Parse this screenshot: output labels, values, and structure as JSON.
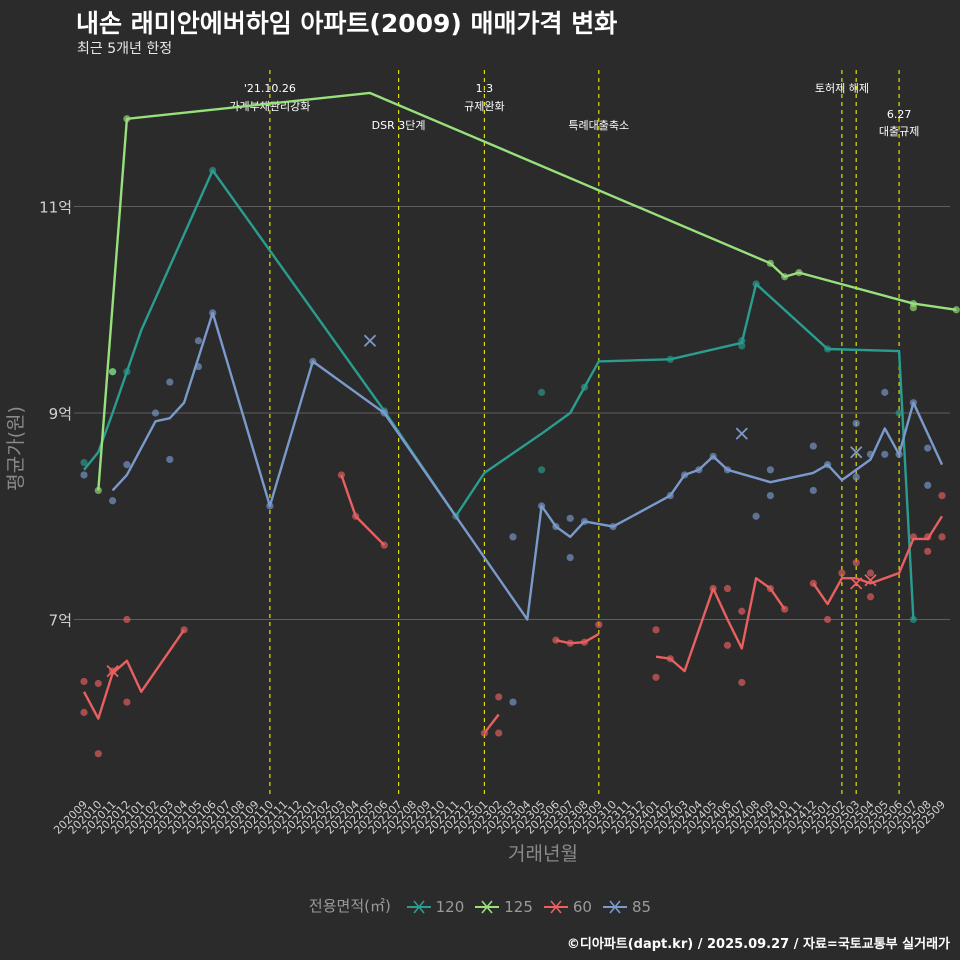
{
  "chart_data": {
    "type": "line",
    "title": "내손 래미안에버하임 아파트(2009) 매매가격 변화",
    "subtitle": "최근 5개년 한정",
    "xlabel": "거래년월",
    "ylabel": "평균가(원)",
    "caption": "©디아파트(dapt.kr) / 2025.09.27 / 자료=국토교통부 실거래가",
    "legend_title": "전용면적(㎡)",
    "ylim": [
      5.3,
      12.4
    ],
    "y_ticks": [
      {
        "value": 7,
        "label": "7억"
      },
      {
        "value": 9,
        "label": "9억"
      },
      {
        "value": 11,
        "label": "11억"
      }
    ],
    "categories": [
      "202009",
      "202010",
      "202011",
      "202012",
      "202101",
      "202102",
      "202103",
      "202104",
      "202105",
      "202106",
      "202107",
      "202108",
      "202109",
      "202110",
      "202111",
      "202112",
      "202201",
      "202202",
      "202203",
      "202204",
      "202205",
      "202206",
      "202207",
      "202208",
      "202209",
      "202210",
      "202211",
      "202212",
      "202301",
      "202302",
      "202303",
      "202304",
      "202305",
      "202306",
      "202307",
      "202308",
      "202309",
      "202310",
      "202311",
      "202312",
      "202401",
      "202402",
      "202403",
      "202404",
      "202405",
      "202406",
      "202407",
      "202408",
      "202409",
      "202410",
      "202411",
      "202412",
      "202501",
      "202502",
      "202503",
      "202504",
      "202505",
      "202506",
      "202507",
      "202508",
      "202509"
    ],
    "events": [
      {
        "x": 13,
        "label": [
          "'21.10.26",
          "가계부채관리강화"
        ],
        "row": 0
      },
      {
        "x": 22,
        "label": [
          "DSR 3단계"
        ],
        "row": 1
      },
      {
        "x": 28,
        "label": [
          "1.3",
          "규제완화"
        ],
        "row": 0
      },
      {
        "x": 36,
        "label": [
          "특례대출축소"
        ],
        "row": 1
      },
      {
        "x": 53,
        "label": [
          "토허제 해제"
        ],
        "row": 0
      },
      {
        "x": 54,
        "label": [],
        "row": 0
      },
      {
        "x": 57,
        "label": [
          "6.27",
          "대출규제"
        ],
        "row": 2
      }
    ],
    "series": [
      {
        "name": "120",
        "color": "#2a9d8f",
        "line": [
          [
            0,
            8.45
          ],
          [
            1,
            8.62
          ],
          [
            2,
            9.0
          ],
          [
            4,
            9.8
          ],
          [
            9,
            11.35
          ],
          [
            21,
            9.02
          ],
          [
            26,
            8.0
          ],
          [
            28,
            8.42
          ],
          [
            32,
            8.8
          ],
          [
            34,
            9.0
          ],
          [
            36,
            9.5
          ],
          [
            41,
            9.52
          ],
          [
            46,
            9.68
          ],
          [
            47,
            10.25
          ],
          [
            52,
            9.62
          ],
          [
            57,
            9.6
          ],
          [
            58,
            7.0
          ]
        ],
        "points": [
          [
            0,
            8.52
          ],
          [
            2,
            9.4
          ],
          [
            3,
            9.4
          ],
          [
            9,
            11.35
          ],
          [
            21,
            9.02
          ],
          [
            26,
            8.0
          ],
          [
            32,
            9.2
          ],
          [
            32,
            8.45
          ],
          [
            35,
            9.25
          ],
          [
            41,
            9.52
          ],
          [
            46,
            9.7
          ],
          [
            46,
            9.65
          ],
          [
            47,
            10.25
          ],
          [
            52,
            9.62
          ],
          [
            57,
            9.0
          ],
          [
            58,
            7.0
          ]
        ],
        "crosses": []
      },
      {
        "name": "125",
        "color": "#98e07c",
        "line": [
          [
            1,
            8.25
          ],
          [
            3,
            11.85
          ],
          [
            20,
            12.1
          ],
          [
            48,
            10.45
          ],
          [
            49,
            10.32
          ],
          [
            50,
            10.36
          ],
          [
            58,
            10.06
          ],
          [
            61,
            10.0
          ]
        ],
        "points": [
          [
            1,
            8.25
          ],
          [
            2,
            9.4
          ],
          [
            3,
            11.85
          ],
          [
            48,
            10.45
          ],
          [
            49,
            10.32
          ],
          [
            50,
            10.36
          ],
          [
            58,
            10.06
          ],
          [
            58,
            10.02
          ],
          [
            61,
            10.0
          ]
        ],
        "crosses": []
      },
      {
        "name": "60",
        "color": "#e86060",
        "line": [
          [
            0,
            6.3
          ],
          [
            1,
            6.04
          ],
          [
            2,
            6.48
          ],
          [
            3,
            6.6
          ],
          [
            4,
            6.3
          ],
          [
            7,
            6.9
          ]
        ],
        "line2": [
          [
            18,
            8.4
          ],
          [
            19,
            8.0
          ],
          [
            21,
            7.72
          ]
        ],
        "line3": [
          [
            28,
            5.9
          ],
          [
            29,
            6.08
          ]
        ],
        "line4": [
          [
            33,
            6.8
          ],
          [
            34,
            6.77
          ],
          [
            35,
            6.78
          ],
          [
            36,
            6.86
          ]
        ],
        "line5": [
          [
            40,
            6.64
          ],
          [
            41,
            6.62
          ],
          [
            42,
            6.5
          ],
          [
            44,
            7.3
          ],
          [
            45,
            7.0
          ],
          [
            46,
            6.72
          ],
          [
            47,
            7.4
          ],
          [
            48,
            7.3
          ],
          [
            49,
            7.1
          ]
        ],
        "line6": [
          [
            51,
            7.35
          ],
          [
            52,
            7.15
          ],
          [
            53,
            7.4
          ],
          [
            54,
            7.4
          ],
          [
            55,
            7.35
          ],
          [
            57,
            7.45
          ],
          [
            58,
            7.78
          ],
          [
            59,
            7.78
          ],
          [
            60,
            8.0
          ]
        ],
        "points": [
          [
            0,
            6.4
          ],
          [
            0,
            6.1
          ],
          [
            1,
            6.38
          ],
          [
            1,
            5.7
          ],
          [
            2,
            6.5
          ],
          [
            3,
            7.0
          ],
          [
            3,
            6.2
          ],
          [
            7,
            6.9
          ],
          [
            18,
            8.4
          ],
          [
            19,
            8.0
          ],
          [
            21,
            7.72
          ],
          [
            28,
            5.9
          ],
          [
            29,
            6.25
          ],
          [
            29,
            5.9
          ],
          [
            33,
            6.8
          ],
          [
            34,
            6.77
          ],
          [
            35,
            6.78
          ],
          [
            36,
            6.95
          ],
          [
            40,
            6.9
          ],
          [
            40,
            6.44
          ],
          [
            41,
            6.62
          ],
          [
            44,
            7.3
          ],
          [
            45,
            7.3
          ],
          [
            45,
            6.75
          ],
          [
            46,
            7.08
          ],
          [
            46,
            6.39
          ],
          [
            48,
            7.3
          ],
          [
            49,
            7.1
          ],
          [
            51,
            7.35
          ],
          [
            52,
            7.0
          ],
          [
            53,
            7.45
          ],
          [
            54,
            7.55
          ],
          [
            55,
            7.22
          ],
          [
            55,
            7.45
          ],
          [
            58,
            7.8
          ],
          [
            59,
            7.66
          ],
          [
            59,
            7.8
          ],
          [
            60,
            8.2
          ],
          [
            60,
            7.8
          ]
        ],
        "crosses": [
          [
            2,
            6.5
          ],
          [
            54,
            7.35
          ],
          [
            55,
            7.38
          ]
        ]
      },
      {
        "name": "85",
        "color": "#7b9acc",
        "line": [
          [
            2,
            8.25
          ],
          [
            3,
            8.4
          ],
          [
            5,
            8.92
          ],
          [
            6,
            8.95
          ],
          [
            7,
            9.1
          ],
          [
            9,
            9.97
          ],
          [
            13,
            8.1
          ],
          [
            16,
            9.5
          ],
          [
            21,
            9.0
          ],
          [
            31,
            7.0
          ],
          [
            32,
            8.1
          ],
          [
            33,
            7.9
          ],
          [
            34,
            7.8
          ],
          [
            35,
            7.95
          ],
          [
            37,
            7.9
          ],
          [
            41,
            8.2
          ],
          [
            42,
            8.4
          ],
          [
            43,
            8.45
          ],
          [
            44,
            8.58
          ],
          [
            45,
            8.45
          ],
          [
            48,
            8.33
          ],
          [
            51,
            8.42
          ],
          [
            52,
            8.5
          ],
          [
            53,
            8.35
          ],
          [
            55,
            8.55
          ],
          [
            56,
            8.85
          ],
          [
            57,
            8.6
          ],
          [
            58,
            9.1
          ],
          [
            60,
            8.5
          ]
        ],
        "points": [
          [
            0,
            8.4
          ],
          [
            2,
            8.15
          ],
          [
            3,
            8.5
          ],
          [
            5,
            9.0
          ],
          [
            6,
            9.3
          ],
          [
            6,
            8.55
          ],
          [
            8,
            9.7
          ],
          [
            8,
            9.45
          ],
          [
            9,
            9.97
          ],
          [
            13,
            8.1
          ],
          [
            16,
            9.5
          ],
          [
            21,
            9.0
          ],
          [
            30,
            7.8
          ],
          [
            30,
            6.2
          ],
          [
            32,
            8.1
          ],
          [
            33,
            7.9
          ],
          [
            34,
            7.98
          ],
          [
            34,
            7.6
          ],
          [
            35,
            7.95
          ],
          [
            37,
            7.9
          ],
          [
            41,
            8.2
          ],
          [
            42,
            8.4
          ],
          [
            43,
            8.45
          ],
          [
            44,
            8.58
          ],
          [
            45,
            8.45
          ],
          [
            47,
            8.0
          ],
          [
            48,
            8.45
          ],
          [
            48,
            8.2
          ],
          [
            51,
            8.68
          ],
          [
            51,
            8.25
          ],
          [
            52,
            8.5
          ],
          [
            54,
            8.9
          ],
          [
            54,
            8.38
          ],
          [
            55,
            8.6
          ],
          [
            56,
            9.2
          ],
          [
            56,
            8.6
          ],
          [
            57,
            8.6
          ],
          [
            58,
            9.1
          ],
          [
            59,
            8.66
          ],
          [
            59,
            8.3
          ]
        ],
        "crosses": [
          [
            20,
            9.7
          ],
          [
            46,
            8.8
          ],
          [
            54,
            8.62
          ]
        ]
      }
    ]
  }
}
